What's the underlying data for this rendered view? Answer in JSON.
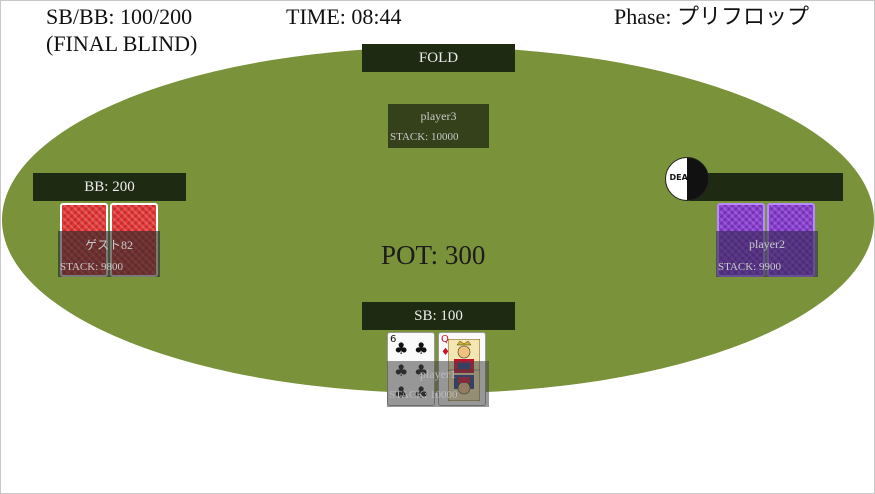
{
  "hud": {
    "blinds": "SB/BB: 100/200",
    "blind_level": "(FINAL BLIND)",
    "time": "TIME: 08:44",
    "phase": "Phase: プリフロップ"
  },
  "seats": {
    "top": {
      "action": "FOLD",
      "name": "player3",
      "stack": "STACK: 10000"
    },
    "left": {
      "action": "BB: 200",
      "name": "ゲスト82",
      "stack": "STACK: 9800",
      "card_back_color": "#e33838"
    },
    "right": {
      "action": "",
      "name": "player2",
      "stack": "STACK: 9900",
      "card_back_color": "#8a3fd1",
      "dealer_label": "DEALER"
    },
    "bottom": {
      "action": "SB: 100",
      "name": "player1",
      "stack": "STACK: 10000",
      "cards": [
        {
          "rank": "6",
          "suit": "♣"
        },
        {
          "rank": "Q",
          "suit": "♦"
        }
      ]
    }
  },
  "pot": "POT: 300",
  "colors": {
    "felt": "#7a923a",
    "bar": "#1f2a12",
    "background": "#ffffff"
  }
}
